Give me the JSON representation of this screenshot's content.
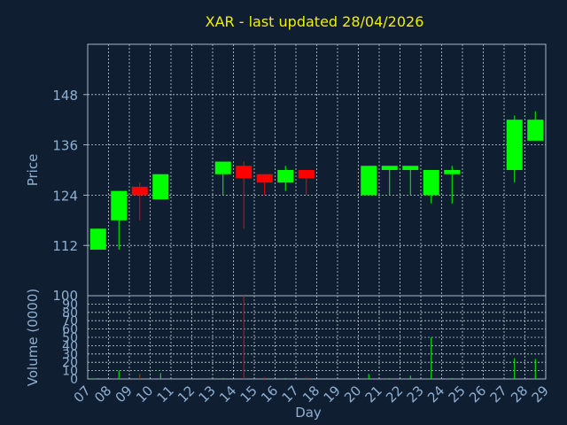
{
  "title": "XAR - last updated 28/04/2026",
  "colors": {
    "background": "#0f1e31",
    "up": "#00ff00",
    "down": "#ff0000",
    "title": "#f0f000",
    "text": "#8fb0d0",
    "grid": "#c8d0d8"
  },
  "chart_data": [
    {
      "type": "candlestick",
      "title": "XAR - last updated 28/04/2026",
      "ylabel": "Price",
      "ylim": [
        100,
        160
      ],
      "yticks": [
        112,
        124,
        136,
        148
      ],
      "grid": true,
      "x": [
        "07",
        "08",
        "09",
        "10",
        "13",
        "14",
        "15",
        "16",
        "17",
        "20",
        "21",
        "22",
        "23",
        "24",
        "27",
        "28"
      ],
      "open": [
        111,
        118,
        126,
        123,
        129,
        131,
        129,
        127,
        130,
        124,
        130,
        130,
        124,
        129,
        130,
        137
      ],
      "close": [
        116,
        125,
        124,
        129,
        132,
        128,
        127,
        130,
        128,
        131,
        131,
        131,
        130,
        130,
        142,
        142
      ],
      "high": [
        116,
        125,
        127,
        129,
        132,
        132,
        129,
        131,
        130,
        131,
        131,
        131,
        130,
        131,
        143,
        144
      ],
      "low": [
        111,
        111,
        118,
        123,
        124,
        116,
        124,
        125,
        124,
        124,
        124,
        124,
        122,
        122,
        127,
        137
      ]
    },
    {
      "type": "bar",
      "ylabel": "Volume (0000)",
      "xlabel": "Day",
      "ylim": [
        0,
        100
      ],
      "yticks": [
        0,
        10,
        20,
        30,
        40,
        50,
        60,
        70,
        80,
        90,
        100
      ],
      "grid": true,
      "x": [
        "07",
        "08",
        "09",
        "10",
        "13",
        "14",
        "15",
        "16",
        "17",
        "20",
        "21",
        "22",
        "23",
        "24",
        "27",
        "28"
      ],
      "values": [
        1,
        10,
        6,
        7,
        1,
        100,
        2,
        1,
        2,
        6,
        1,
        4,
        50,
        1,
        25,
        24
      ],
      "direction": [
        "up",
        "up",
        "down",
        "up",
        "up",
        "down",
        "down",
        "up",
        "down",
        "up",
        "up",
        "up",
        "up",
        "up",
        "up",
        "up"
      ]
    }
  ],
  "x_axis": {
    "tick_labels": [
      "07",
      "08",
      "09",
      "10",
      "11",
      "12",
      "13",
      "14",
      "15",
      "16",
      "17",
      "18",
      "19",
      "20",
      "21",
      "22",
      "23",
      "24",
      "25",
      "26",
      "27",
      "28",
      "29"
    ]
  }
}
